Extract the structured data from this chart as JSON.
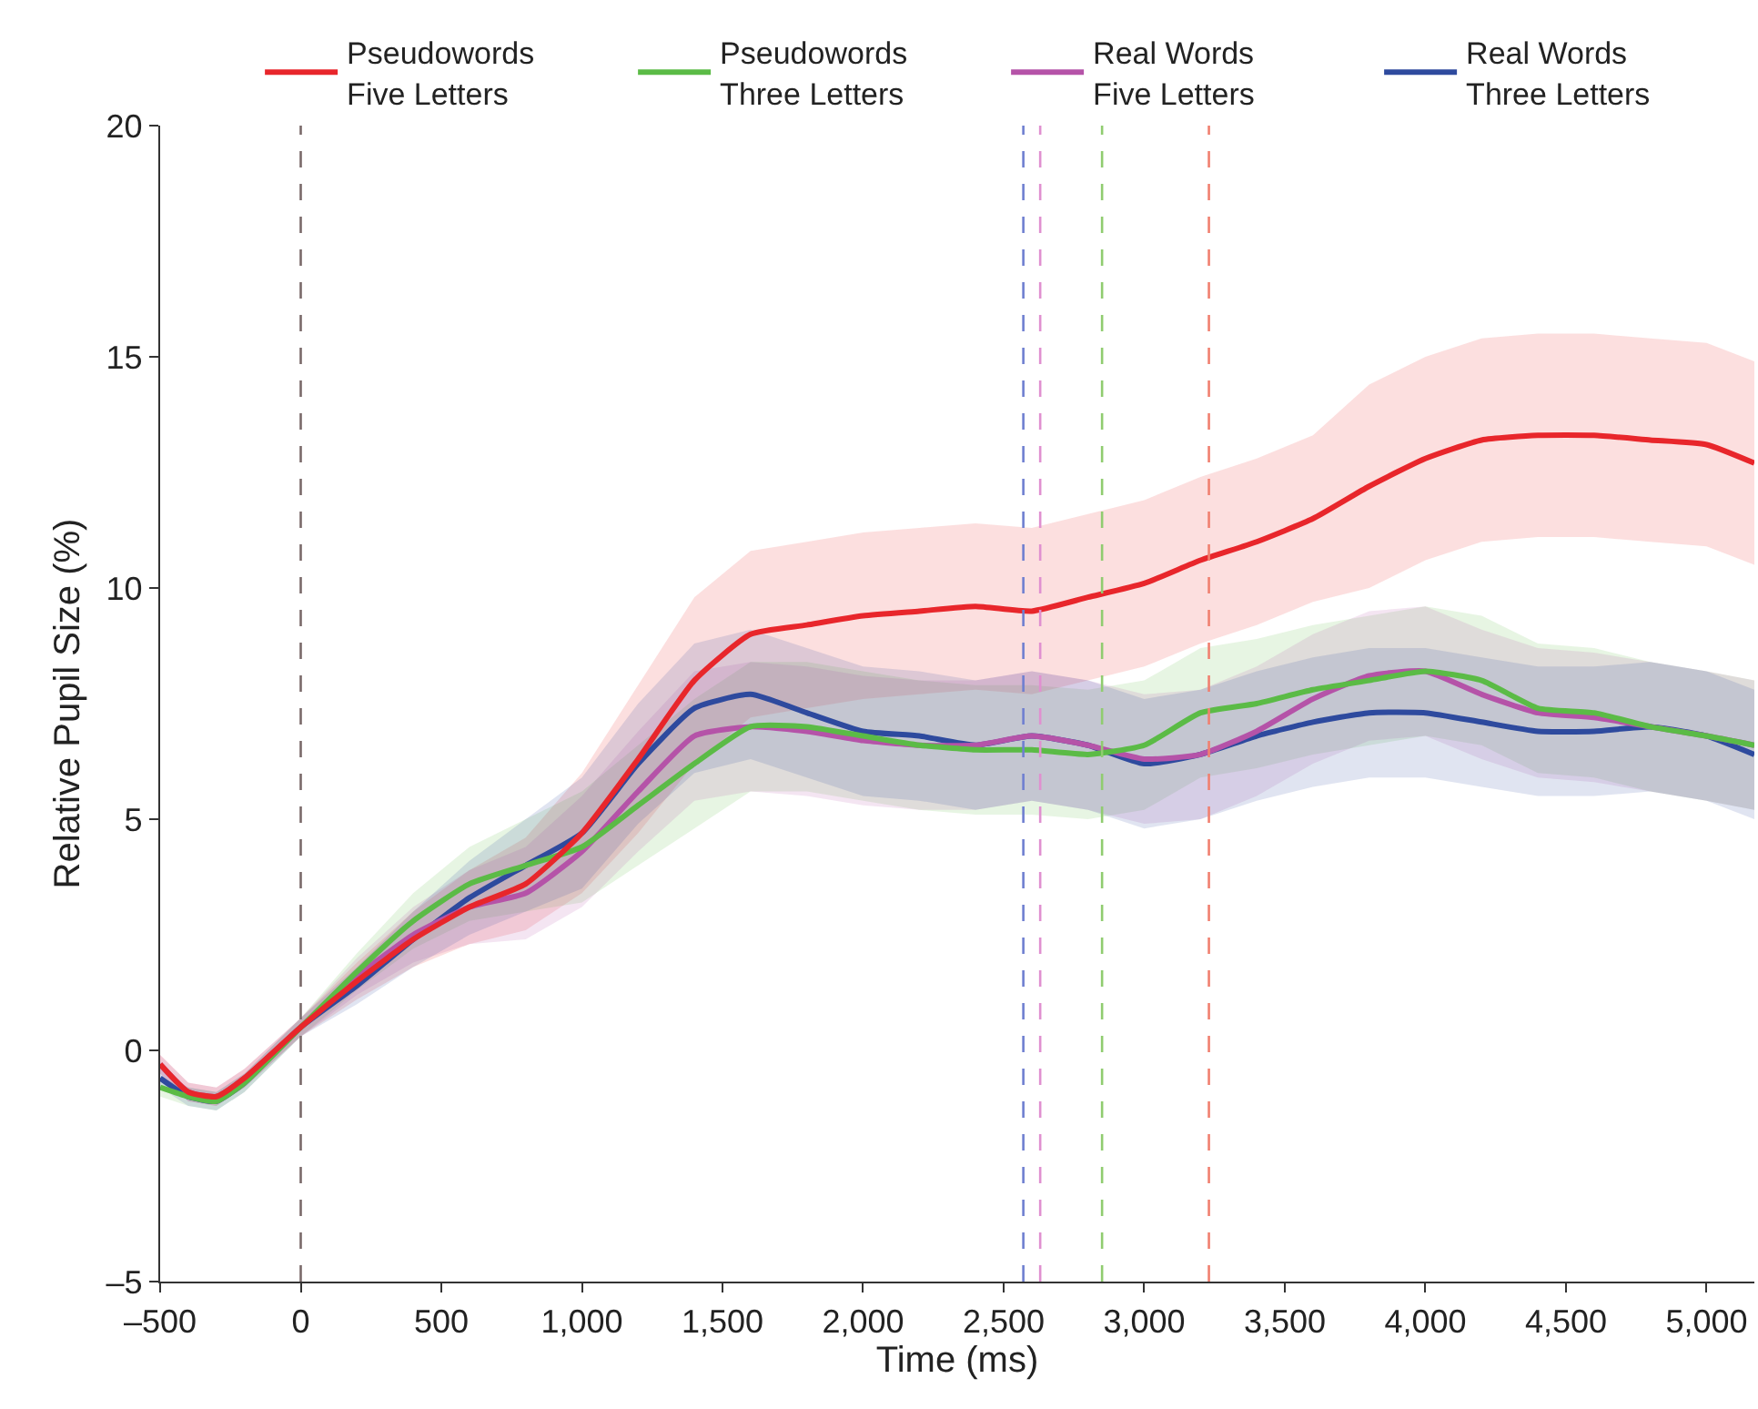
{
  "chart_data": {
    "type": "line",
    "xlabel": "Time (ms)",
    "ylabel": "Relative Pupil Size (%)",
    "x": [
      -500,
      -400,
      -300,
      -200,
      0,
      200,
      400,
      600,
      800,
      1000,
      1200,
      1400,
      1600,
      1800,
      2000,
      2200,
      2400,
      2600,
      2800,
      3000,
      3200,
      3400,
      3600,
      3800,
      4000,
      4200,
      4400,
      4600,
      4800,
      5000,
      5170
    ],
    "series": [
      {
        "name": "Pseudowords\nFive Letters",
        "color": "#e8262b",
        "values": [
          -0.3,
          -0.9,
          -1.0,
          -0.6,
          0.5,
          1.5,
          2.4,
          3.1,
          3.6,
          4.7,
          6.3,
          8.0,
          9.0,
          9.2,
          9.4,
          9.5,
          9.6,
          9.5,
          9.8,
          10.1,
          10.6,
          11.0,
          11.5,
          12.2,
          12.8,
          13.2,
          13.3,
          13.3,
          13.2,
          13.1,
          12.7
        ],
        "upper": [
          -0.1,
          -0.7,
          -0.8,
          -0.4,
          0.7,
          1.9,
          3.0,
          3.9,
          4.6,
          6.0,
          7.9,
          9.8,
          10.8,
          11.0,
          11.2,
          11.3,
          11.4,
          11.3,
          11.6,
          11.9,
          12.4,
          12.8,
          13.3,
          14.4,
          15.0,
          15.4,
          15.5,
          15.5,
          15.4,
          15.3,
          14.9
        ],
        "lower": [
          -0.5,
          -1.1,
          -1.2,
          -0.8,
          0.3,
          1.1,
          1.8,
          2.3,
          2.6,
          3.4,
          4.7,
          6.2,
          7.2,
          7.4,
          7.6,
          7.7,
          7.8,
          7.7,
          8.0,
          8.3,
          8.8,
          9.2,
          9.7,
          10.0,
          10.6,
          11.0,
          11.1,
          11.1,
          11.0,
          10.9,
          10.5
        ]
      },
      {
        "name": "Pseudowords\nThree Letters",
        "color": "#5bbb46",
        "values": [
          -0.8,
          -1.0,
          -1.1,
          -0.7,
          0.5,
          1.7,
          2.8,
          3.6,
          4.0,
          4.4,
          5.3,
          6.2,
          7.0,
          7.0,
          6.8,
          6.6,
          6.5,
          6.5,
          6.4,
          6.6,
          7.3,
          7.5,
          7.8,
          8.0,
          8.2,
          8.0,
          7.4,
          7.3,
          7.0,
          6.8,
          6.6
        ],
        "upper": [
          -0.6,
          -0.8,
          -0.9,
          -0.5,
          0.7,
          2.1,
          3.4,
          4.4,
          5.0,
          5.6,
          6.6,
          7.6,
          8.4,
          8.4,
          8.2,
          8.0,
          7.9,
          7.9,
          7.8,
          8.0,
          8.7,
          8.9,
          9.2,
          9.4,
          9.6,
          9.4,
          8.8,
          8.7,
          8.4,
          8.2,
          8.0
        ],
        "lower": [
          -1.0,
          -1.2,
          -1.3,
          -0.9,
          0.3,
          1.3,
          2.2,
          2.8,
          3.0,
          3.2,
          4.0,
          4.8,
          5.6,
          5.6,
          5.4,
          5.2,
          5.1,
          5.1,
          5.0,
          5.2,
          5.9,
          6.1,
          6.4,
          6.6,
          6.8,
          6.6,
          6.0,
          5.9,
          5.6,
          5.4,
          5.2
        ]
      },
      {
        "name": "Real Words\nFive Letters",
        "color": "#b553a8",
        "values": [
          -0.3,
          -0.9,
          -1.0,
          -0.6,
          0.5,
          1.6,
          2.5,
          3.1,
          3.4,
          4.3,
          5.6,
          6.8,
          7.0,
          6.9,
          6.7,
          6.6,
          6.6,
          6.8,
          6.6,
          6.3,
          6.4,
          6.9,
          7.6,
          8.1,
          8.2,
          7.7,
          7.3,
          7.2,
          7.0,
          6.8,
          6.6
        ],
        "upper": [
          -0.1,
          -0.7,
          -0.8,
          -0.4,
          0.7,
          2.0,
          3.1,
          3.9,
          4.4,
          5.5,
          6.9,
          8.2,
          8.4,
          8.3,
          8.1,
          8.0,
          8.0,
          8.2,
          8.0,
          7.7,
          7.8,
          8.3,
          9.0,
          9.5,
          9.6,
          9.1,
          8.7,
          8.6,
          8.4,
          8.2,
          8.0
        ],
        "lower": [
          -0.5,
          -1.1,
          -1.2,
          -0.8,
          0.3,
          1.2,
          1.9,
          2.3,
          2.4,
          3.1,
          4.3,
          5.4,
          5.6,
          5.5,
          5.3,
          5.2,
          5.2,
          5.4,
          5.2,
          4.9,
          5.0,
          5.5,
          6.2,
          6.7,
          6.8,
          6.3,
          5.9,
          5.8,
          5.6,
          5.4,
          5.2
        ]
      },
      {
        "name": "Real Words\nThree Letters",
        "color": "#2e4a9e",
        "values": [
          -0.6,
          -1.0,
          -1.1,
          -0.7,
          0.5,
          1.4,
          2.4,
          3.3,
          4.0,
          4.7,
          6.2,
          7.4,
          7.7,
          7.3,
          6.9,
          6.8,
          6.6,
          6.8,
          6.6,
          6.2,
          6.4,
          6.8,
          7.1,
          7.3,
          7.3,
          7.1,
          6.9,
          6.9,
          7.0,
          6.8,
          6.4
        ],
        "upper": [
          -0.4,
          -0.8,
          -0.9,
          -0.5,
          0.7,
          1.8,
          3.0,
          4.1,
          5.0,
          5.9,
          7.5,
          8.8,
          9.1,
          8.7,
          8.3,
          8.2,
          8.0,
          8.2,
          8.0,
          7.6,
          7.8,
          8.2,
          8.5,
          8.7,
          8.7,
          8.5,
          8.3,
          8.3,
          8.4,
          8.2,
          7.8
        ],
        "lower": [
          -0.8,
          -1.2,
          -1.3,
          -0.9,
          0.3,
          1.0,
          1.8,
          2.5,
          3.0,
          3.5,
          4.9,
          6.0,
          6.3,
          5.9,
          5.5,
          5.4,
          5.2,
          5.4,
          5.2,
          4.8,
          5.0,
          5.4,
          5.7,
          5.9,
          5.9,
          5.7,
          5.5,
          5.5,
          5.6,
          5.4,
          5.0
        ]
      }
    ],
    "xlim": [
      -500,
      5170
    ],
    "xticks": [
      {
        "value": -500,
        "label": "–500"
      },
      0,
      500,
      {
        "value": 1000,
        "label": "1,000"
      },
      {
        "value": 1500,
        "label": "1,500"
      },
      {
        "value": 2000,
        "label": "2,000"
      },
      {
        "value": 2500,
        "label": "2,500"
      },
      {
        "value": 3000,
        "label": "3,000"
      },
      {
        "value": 3500,
        "label": "3,500"
      },
      {
        "value": 4000,
        "label": "4,000"
      },
      {
        "value": 4500,
        "label": "4,500"
      },
      {
        "value": 5000,
        "label": "5,000"
      }
    ],
    "ylim": [
      -5,
      20
    ],
    "yticks": [
      {
        "value": -5,
        "label": "–5"
      },
      0,
      5,
      10,
      15,
      20
    ],
    "ref_lines": [
      {
        "axis": "x",
        "value": 0,
        "color": "#7a6a6a",
        "line_style": "dashed"
      },
      {
        "axis": "x",
        "value": 2570,
        "color": "#6f7fd0",
        "line_style": "dashed"
      },
      {
        "axis": "x",
        "value": 2630,
        "color": "#e090d0",
        "line_style": "dashed"
      },
      {
        "axis": "x",
        "value": 2850,
        "color": "#90cc70",
        "line_style": "dashed"
      },
      {
        "axis": "x",
        "value": 3230,
        "color": "#f08070",
        "line_style": "dashed"
      }
    ],
    "legend": "top",
    "marker": "none",
    "line_style": "solid"
  }
}
